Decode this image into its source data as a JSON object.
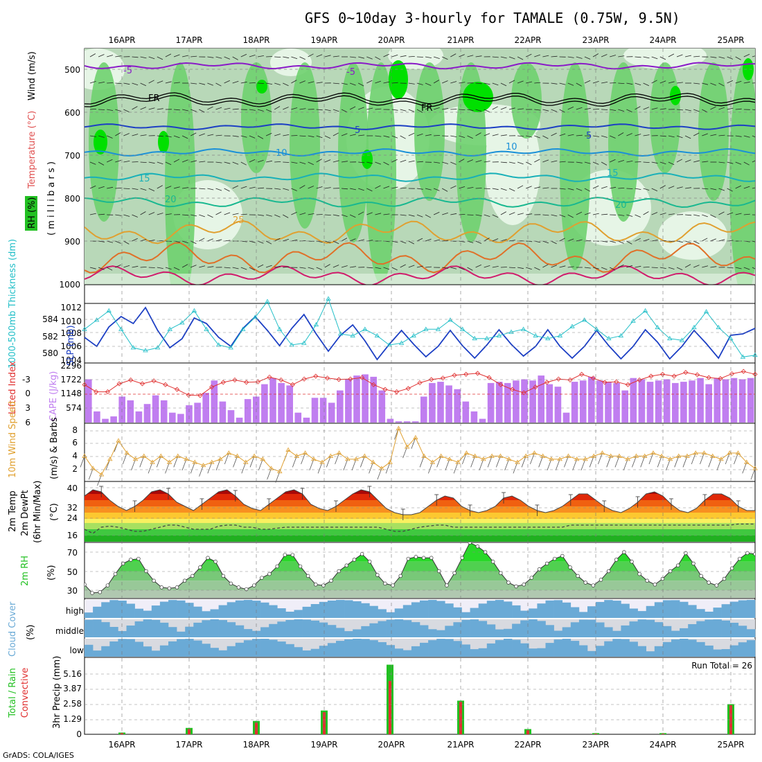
{
  "title": "GFS 0~10day 3-hourly for TAMALE (0.75W, 9.5N)",
  "credit": "GrADS: COLA/IGES",
  "dates": [
    "16APR",
    "17APR",
    "18APR",
    "19APR",
    "20APR",
    "21APR",
    "22APR",
    "23APR",
    "24APR",
    "25APR"
  ],
  "colors": {
    "rh_dark": "#6fd16f",
    "rh_mid": "#b8d8b8",
    "rh_light": "#e6f5e6",
    "rh_bright": "#00e000",
    "slp": "#1c3fc4",
    "thick": "#22bfc8",
    "li": "#e03030",
    "cape": "#c07ef0",
    "wind": "#e0a030",
    "temp_hot": "#c81414",
    "rh2m": "#28c828",
    "cloud": "#6aaad6",
    "precip_total": "#22c022",
    "precip_conv": "#e03030"
  },
  "panels": {
    "upper": {
      "ylabel_rh": "RH (%)",
      "ylabel_temp": "Temperature (°C)",
      "ylabel_wind": "Wind (m/s)",
      "ylabel_units": "( m i l l i b a r s )",
      "yticks": [
        "500",
        "600",
        "700",
        "800",
        "900",
        "1000"
      ],
      "contour_labels": [
        "-5",
        "-5",
        "FR",
        "FR",
        "5",
        "5",
        "10",
        "10",
        "15",
        "15",
        "20",
        "20",
        "25"
      ]
    },
    "slp": {
      "ylabel_left": "1000-500mb Thickness (dm)",
      "ylabel_right": "SLP (mb)",
      "left_ticks": [
        "584",
        "582",
        "580"
      ],
      "right_ticks": [
        "1012",
        "1010",
        "1008",
        "1006",
        "1004"
      ]
    },
    "cape": {
      "ylabel_left": "Lifted Index",
      "ylabel_right": "CAPE (J/kg)",
      "left_ticks": [
        "-3",
        "0",
        "3",
        "6"
      ],
      "right_ticks": [
        "2296",
        "1722",
        "1148",
        "574"
      ]
    },
    "wind10": {
      "ylabel": "10m Wind Speed",
      "ylabel2": "(m/s) & Barbs",
      "ticks": [
        "8",
        "6",
        "4",
        "2"
      ]
    },
    "temp2m": {
      "ylabel": "2m Temp",
      "ylabel2": "2m DewPt",
      "ylabel3": "(6hr Min/Max)",
      "units": "(°C)",
      "ticks": [
        "40",
        "32",
        "24",
        "16"
      ]
    },
    "rh2m": {
      "ylabel": "2m RH",
      "units": "(%)",
      "ticks": [
        "70",
        "50",
        "30"
      ]
    },
    "cloud": {
      "ylabel": "Cloud Cover",
      "units": "(%)",
      "levels": [
        "high",
        "middle",
        "low"
      ]
    },
    "precip": {
      "ylabel": "3hr Precip (mm)",
      "ylabel_total": "Total / Rain",
      "ylabel_conv": "Convective",
      "ticks": [
        "5.16",
        "3.87",
        "2.58",
        "1.29",
        "0"
      ],
      "run_total": "Run Total = 26"
    }
  },
  "chart_data": [
    {
      "type": "line",
      "name_panel": "slp",
      "series": [
        {
          "name": "SLP (mb)",
          "axis": "right",
          "values": [
            1007.5,
            1006.2,
            1009,
            1010.5,
            1009.5,
            1011.8,
            1008.5,
            1006,
            1007.3,
            1010.3,
            1009.5,
            1007.5,
            1006.2,
            1008.8,
            1010.5,
            1008.5,
            1006.3,
            1008.8,
            1010.8,
            1008,
            1005.5,
            1007.8,
            1009.3,
            1007,
            1004.3,
            1006.5,
            1008.5,
            1006.5,
            1004.7,
            1006.2,
            1008.5,
            1006.3,
            1004.5,
            1006.4,
            1008.6,
            1006.5,
            1004.8,
            1006.2,
            1008.6,
            1006.2,
            1004.5,
            1006.2,
            1008.5,
            1006.3,
            1004.4,
            1006.2,
            1008.6,
            1006.8,
            1004.4,
            1006.2,
            1008.5,
            1006.6,
            1004.5,
            1007.8,
            1008,
            1008.8
          ]
        },
        {
          "name": "1000-500mb Thickness (dm)",
          "axis": "left",
          "values": [
            582.5,
            583.5,
            584.5,
            582.5,
            580.5,
            580.2,
            580.5,
            582.5,
            583.2,
            584.5,
            582.5,
            580.8,
            580.5,
            582.5,
            583.8,
            585.5,
            582.5,
            580.8,
            581,
            583,
            585.8,
            582,
            581.8,
            582.5,
            581.8,
            580.8,
            581,
            581.8,
            582.5,
            582.5,
            583.5,
            582.5,
            581.5,
            581.5,
            581.8,
            582.2,
            582.5,
            581.8,
            581.5,
            581.8,
            582.8,
            583.5,
            582.5,
            581.5,
            581.8,
            583.4,
            584.5,
            582.7,
            581.5,
            581.3,
            582.7,
            584.4,
            582.7,
            581.5,
            579.5,
            579.7
          ]
        }
      ],
      "right_ylim": [
        1004,
        1012
      ],
      "left_ylim": [
        579,
        585
      ]
    },
    {
      "type": "bar",
      "name_panel": "cape",
      "series": [
        {
          "name": "CAPE (J/kg)",
          "values": [
            1750,
            450,
            150,
            250,
            1050,
            900,
            450,
            750,
            1100,
            900,
            400,
            350,
            700,
            800,
            1200,
            1700,
            850,
            500,
            200,
            950,
            1050,
            1550,
            1800,
            1600,
            1500,
            400,
            200,
            1000,
            1000,
            800,
            1300,
            1750,
            1900,
            1950,
            1850,
            1300,
            150,
            50,
            50,
            50,
            1050,
            1600,
            1650,
            1500,
            1350,
            850,
            450,
            150,
            1600,
            1650,
            1600,
            1700,
            1750,
            1700,
            1900,
            1550,
            1450,
            400,
            1650,
            1700,
            1850,
            1700,
            1650,
            1600,
            1300,
            1800,
            1750,
            1650,
            1700,
            1750,
            1600,
            1650,
            1700,
            1800,
            1550,
            1800,
            1750,
            1800,
            1750,
            1800
          ]
        },
        {
          "name": "Lifted Index",
          "values": [
            -2,
            -0.5,
            -0.5,
            -2.2,
            -3,
            -2.2,
            -2.8,
            -2,
            -1,
            0.2,
            0.3,
            -1.5,
            -2.5,
            -3,
            -2.5,
            -2.6,
            -3.6,
            -3,
            -2,
            -3.2,
            -3.8,
            -3.4,
            -3.1,
            -3.2,
            -3.5,
            -2,
            -1,
            -0.5,
            -1.2,
            -2.4,
            -3.1,
            -3.4,
            -4,
            -4.2,
            -4.4,
            -3.5,
            -2,
            -1,
            -0.3,
            -1.5,
            -2.5,
            -3.2,
            -3,
            -4.2,
            -3.4,
            -2.5,
            -2.6,
            -2,
            -3,
            -3.8,
            -4.2,
            -3.8,
            -4.6,
            -4.1,
            -3.5,
            -3.3,
            -4.3,
            -4.8,
            -4.2
          ]
        }
      ],
      "cape_ylim": [
        0,
        2296
      ],
      "li_ylim": [
        6,
        -6
      ]
    },
    {
      "type": "line",
      "name_panel": "wind10",
      "series": [
        {
          "name": "10m Wind Speed (m/s)",
          "values": [
            4,
            2,
            1,
            3.5,
            6.5,
            4.5,
            3.5,
            4,
            3,
            4,
            3,
            4,
            3.5,
            3,
            2.5,
            3,
            3.5,
            4.5,
            4,
            3,
            4,
            3.5,
            2,
            1.5,
            5,
            4,
            4.5,
            3.5,
            3,
            4,
            4.5,
            3.5,
            3.5,
            4,
            3,
            2,
            3,
            8.5,
            5.5,
            7,
            4,
            3,
            4,
            3.5,
            3,
            4.5,
            4,
            3.5,
            4,
            4,
            3.5,
            3,
            4,
            4.5,
            4,
            3.5,
            3.5,
            4,
            3.5,
            3.5,
            4,
            4.5,
            4,
            4,
            3.5,
            4,
            4,
            4.5,
            4,
            3.5,
            4,
            4,
            4.5,
            4.5,
            4,
            3.5,
            4.5,
            4.5,
            3,
            2
          ]
        }
      ],
      "ylim": [
        0,
        9
      ]
    },
    {
      "type": "area",
      "name_panel": "temp2m",
      "series": [
        {
          "name": "2m Temp",
          "values": [
            35,
            38,
            37,
            33,
            30,
            28,
            30,
            33,
            37,
            38,
            36,
            32,
            30,
            28,
            31,
            34,
            37,
            38,
            35,
            31,
            29,
            28,
            31,
            34,
            37,
            38,
            36,
            31,
            29,
            28,
            30,
            33,
            36,
            38,
            37,
            33,
            29,
            27,
            26,
            26,
            27,
            30,
            33,
            35,
            34,
            30,
            28,
            27,
            28,
            30,
            34,
            35,
            33,
            30,
            28,
            27,
            28,
            30,
            33,
            36,
            36,
            33,
            30,
            28,
            27,
            29,
            32,
            36,
            37,
            35,
            31,
            28,
            27,
            29,
            33,
            36,
            36,
            34,
            30,
            28,
            28
          ]
        },
        {
          "name": "2m DewPt",
          "values": [
            19,
            17,
            20,
            20.5,
            20,
            19,
            18,
            18,
            19,
            20,
            21,
            21,
            20,
            19,
            19,
            19,
            20.5,
            21,
            21,
            20,
            20,
            19,
            19,
            19.5,
            20,
            20,
            20,
            20,
            20,
            20,
            20,
            20,
            20,
            20,
            20,
            20,
            19,
            18,
            18,
            19,
            20,
            20.5,
            21,
            21,
            20,
            20,
            20,
            20,
            20,
            20,
            20,
            20,
            20,
            20,
            20,
            20,
            20,
            20,
            21,
            21,
            21,
            21,
            21,
            21,
            21,
            21,
            21,
            21,
            21,
            21,
            21,
            21,
            21,
            21,
            21,
            21,
            21,
            21,
            21.5,
            21.5,
            21.5
          ]
        }
      ],
      "ylim": [
        13,
        41
      ]
    },
    {
      "type": "area",
      "name_panel": "rh2m",
      "series": [
        {
          "name": "2m RH (%)",
          "values": [
            36,
            27,
            28,
            35,
            47,
            58,
            62,
            63,
            50,
            40,
            33,
            32,
            33,
            40,
            45,
            54,
            64,
            60,
            45,
            37,
            33,
            31,
            35,
            43,
            47,
            55,
            67,
            67,
            55,
            45,
            36,
            35,
            40,
            50,
            56,
            62,
            68,
            60,
            46,
            37,
            35,
            45,
            63,
            65,
            64,
            64,
            50,
            35,
            48,
            64,
            80,
            76,
            70,
            60,
            48,
            38,
            34,
            36,
            43,
            52,
            58,
            63,
            66,
            54,
            45,
            38,
            35,
            41,
            50,
            62,
            70,
            60,
            47,
            40,
            36,
            42,
            50,
            56,
            69,
            58,
            45,
            38,
            35,
            42,
            53,
            63,
            69,
            68
          ]
        }
      ],
      "ylim": [
        22,
        78
      ]
    },
    {
      "type": "bar",
      "name_panel": "precip",
      "categories": [
        "16APR",
        "17APR",
        "18APR",
        "19APR",
        "20APR",
        "21APR",
        "22APR",
        "23APR",
        "24APR",
        "25APR"
      ],
      "series": [
        {
          "name": "Total / Rain",
          "values": [
            0.15,
            0.55,
            1.15,
            2.05,
            6.0,
            2.9,
            0.45,
            0.1,
            0.1,
            2.6
          ]
        },
        {
          "name": "Convective",
          "values": [
            0.1,
            0.45,
            1.0,
            1.9,
            4.6,
            2.8,
            0.35,
            0.05,
            0.05,
            2.5
          ]
        }
      ],
      "ylim": [
        0,
        6.45
      ]
    }
  ]
}
